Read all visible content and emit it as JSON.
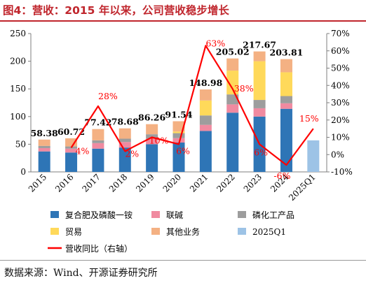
{
  "header": {
    "title": "图4：营收：2015 年以来，公司营收稳步增长"
  },
  "footer": {
    "source": "数据来源：Wind、开源证券研究所"
  },
  "colors": {
    "compound_fertilizer": "#2e75b6",
    "alkali": "#f08aa0",
    "phosphate": "#9d9d9d",
    "trade": "#ffd95a",
    "other": "#f4b183",
    "q1": "#9dc3e6",
    "growth_line": "#ff0000",
    "accent": "#c0262d"
  },
  "chart_data": {
    "type": "bar",
    "stacked": true,
    "categories": [
      "2015",
      "2016",
      "2017",
      "2018",
      "2019",
      "2020",
      "2021",
      "2022",
      "2023",
      "2024",
      "2025Q1"
    ],
    "series": [
      {
        "name": "复合肥及磷酸一铵",
        "color_key": "compound_fertilizer",
        "values": [
          37,
          35,
          42,
          44,
          50,
          53,
          74,
          107,
          100,
          114,
          null
        ]
      },
      {
        "name": "联碱",
        "color_key": "alkali",
        "values": [
          6,
          7,
          10,
          10,
          10,
          8,
          11,
          15,
          15,
          10,
          null
        ]
      },
      {
        "name": "磷化工产品",
        "color_key": "phosphate",
        "values": [
          4,
          4,
          5,
          6,
          8,
          9,
          17,
          18,
          15,
          13,
          null
        ]
      },
      {
        "name": "贸易",
        "color_key": "trade",
        "values": [
          0,
          0,
          0,
          0,
          0,
          3,
          27,
          43,
          70,
          43,
          null
        ]
      },
      {
        "name": "其他业务",
        "color_key": "other",
        "values": [
          11.38,
          14.72,
          20.42,
          18.68,
          18.26,
          18.54,
          19.98,
          22.02,
          17.67,
          23.81,
          null
        ]
      },
      {
        "name": "2025Q1",
        "color_key": "q1",
        "values": [
          null,
          null,
          null,
          null,
          null,
          null,
          null,
          null,
          null,
          null,
          57
        ]
      }
    ],
    "totals": [
      58.38,
      60.72,
      77.42,
      78.68,
      86.26,
      91.54,
      148.98,
      205.02,
      217.67,
      203.81,
      null
    ],
    "total_labels": [
      "58.38",
      "60.72",
      "77.42",
      "78.68",
      "86.26",
      "91.54",
      "148.98",
      "205.02",
      "217.67",
      "203.81",
      ""
    ],
    "line_series": {
      "name": "营收同比（右轴）",
      "color_key": "growth_line",
      "values": [
        null,
        4,
        28,
        2,
        10,
        6,
        63,
        38,
        6,
        -6,
        15
      ],
      "labels": [
        "",
        "4%",
        "28%",
        "2%",
        "10%",
        "6%",
        "63%",
        "38%",
        "6%",
        "-6%",
        "15%"
      ]
    },
    "y_left": {
      "min": 0,
      "max": 250,
      "ticks": [
        "0",
        "50",
        "100",
        "150",
        "200",
        "250"
      ],
      "values": [
        0,
        50,
        100,
        150,
        200,
        250
      ]
    },
    "y_right": {
      "min": -10,
      "max": 70,
      "ticks": [
        "-10%",
        "0%",
        "10%",
        "20%",
        "30%",
        "40%",
        "50%",
        "60%",
        "70%"
      ],
      "values": [
        -10,
        0,
        10,
        20,
        30,
        40,
        50,
        60,
        70
      ]
    },
    "legend_position": "bottom",
    "legend": [
      {
        "label": "复合肥及磷酸一铵",
        "color_key": "compound_fertilizer",
        "kind": "box"
      },
      {
        "label": "联碱",
        "color_key": "alkali",
        "kind": "box"
      },
      {
        "label": "磷化工产品",
        "color_key": "phosphate",
        "kind": "box"
      },
      {
        "label": "贸易",
        "color_key": "trade",
        "kind": "box"
      },
      {
        "label": "其他业务",
        "color_key": "other",
        "kind": "box"
      },
      {
        "label": "2025Q1",
        "color_key": "q1",
        "kind": "box"
      },
      {
        "label": "营收同比（右轴）",
        "color_key": "growth_line",
        "kind": "line"
      }
    ]
  }
}
